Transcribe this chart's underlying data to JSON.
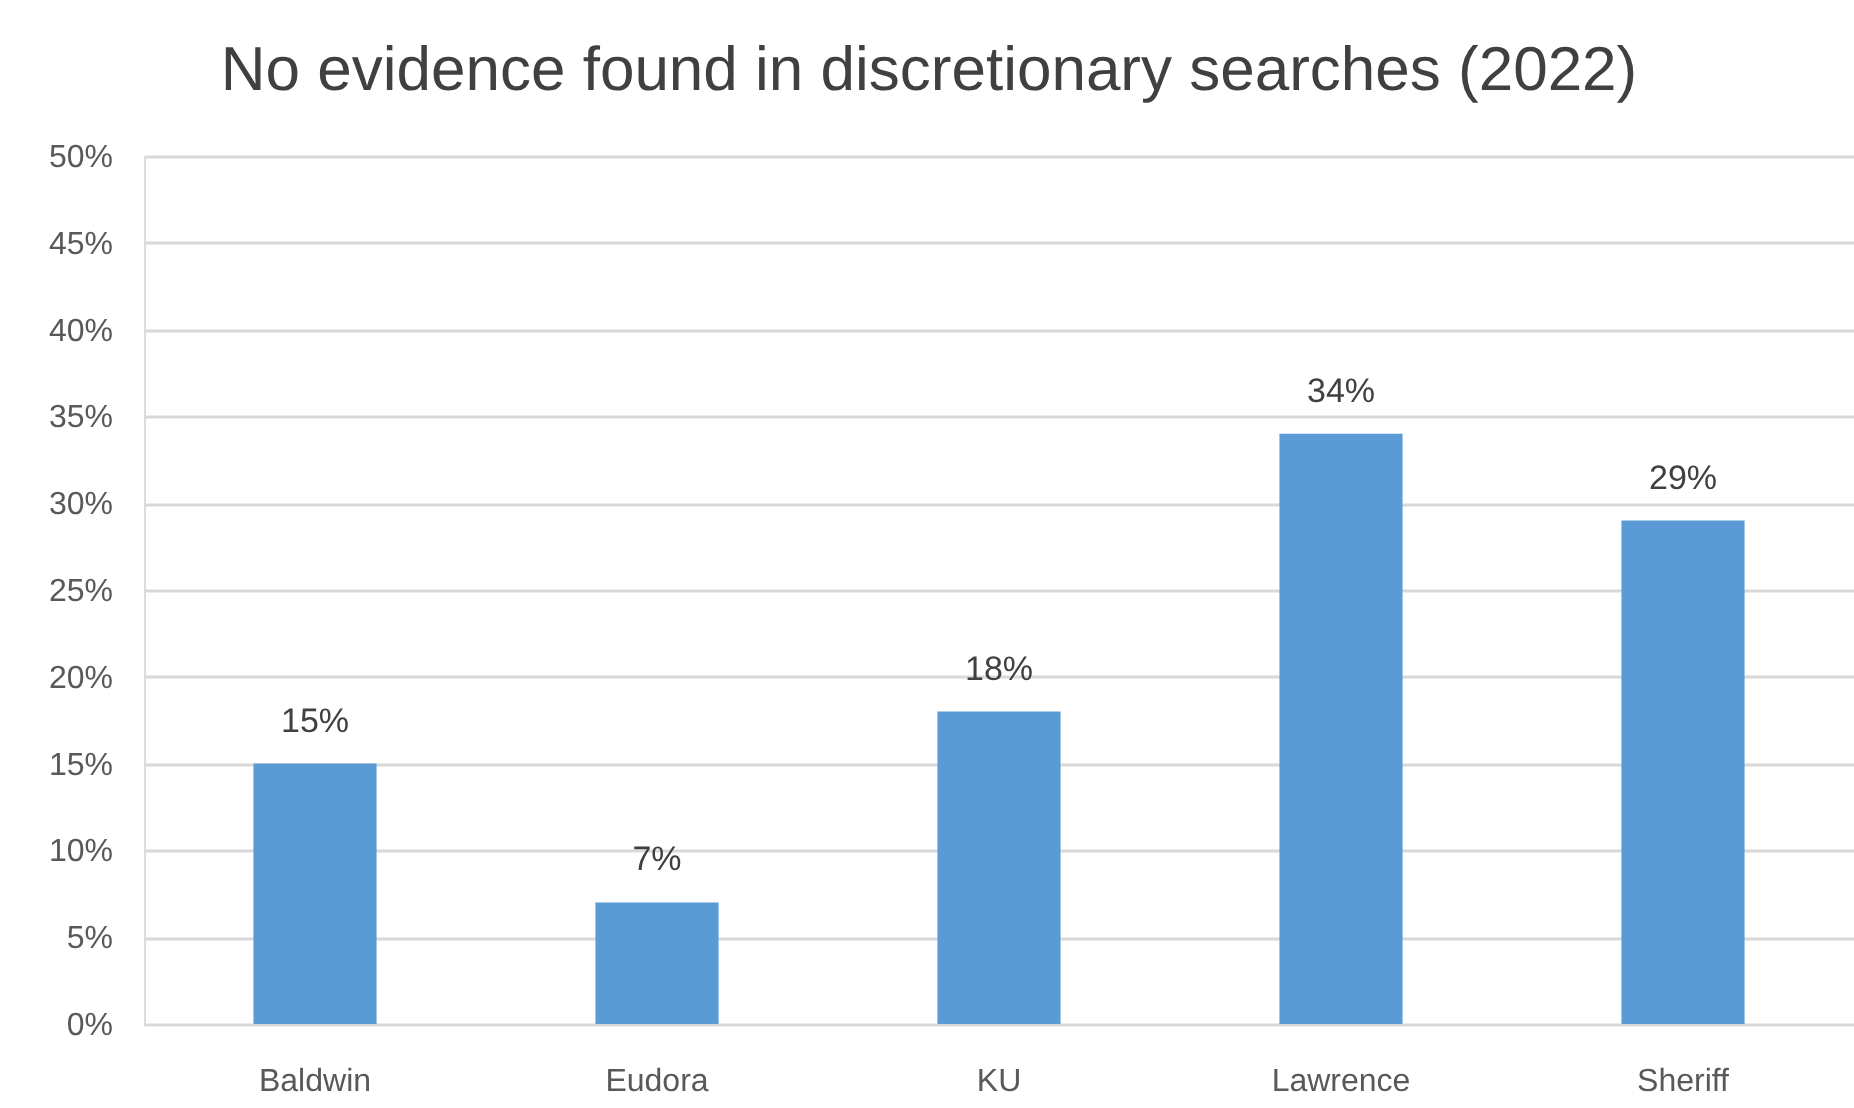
{
  "chart_data": {
    "type": "bar",
    "title": "No evidence found in discretionary searches (2022)",
    "categories": [
      "Baldwin",
      "Eudora",
      "KU",
      "Lawrence",
      "Sheriff"
    ],
    "values": [
      15,
      7,
      18,
      34,
      29
    ],
    "value_labels": [
      "15%",
      "7%",
      "18%",
      "34%",
      "29%"
    ],
    "color": "#5b9bd5",
    "ylim": [
      0,
      50
    ],
    "yticks": [
      {
        "value": 0,
        "label": "0%"
      },
      {
        "value": 5,
        "label": "5%"
      },
      {
        "value": 10,
        "label": "10%"
      },
      {
        "value": 15,
        "label": "15%"
      },
      {
        "value": 20,
        "label": "20%"
      },
      {
        "value": 25,
        "label": "25%"
      },
      {
        "value": 30,
        "label": "30%"
      },
      {
        "value": 35,
        "label": "35%"
      },
      {
        "value": 40,
        "label": "40%"
      },
      {
        "value": 45,
        "label": "45%"
      },
      {
        "value": 50,
        "label": "50%"
      }
    ],
    "grid": "y"
  }
}
